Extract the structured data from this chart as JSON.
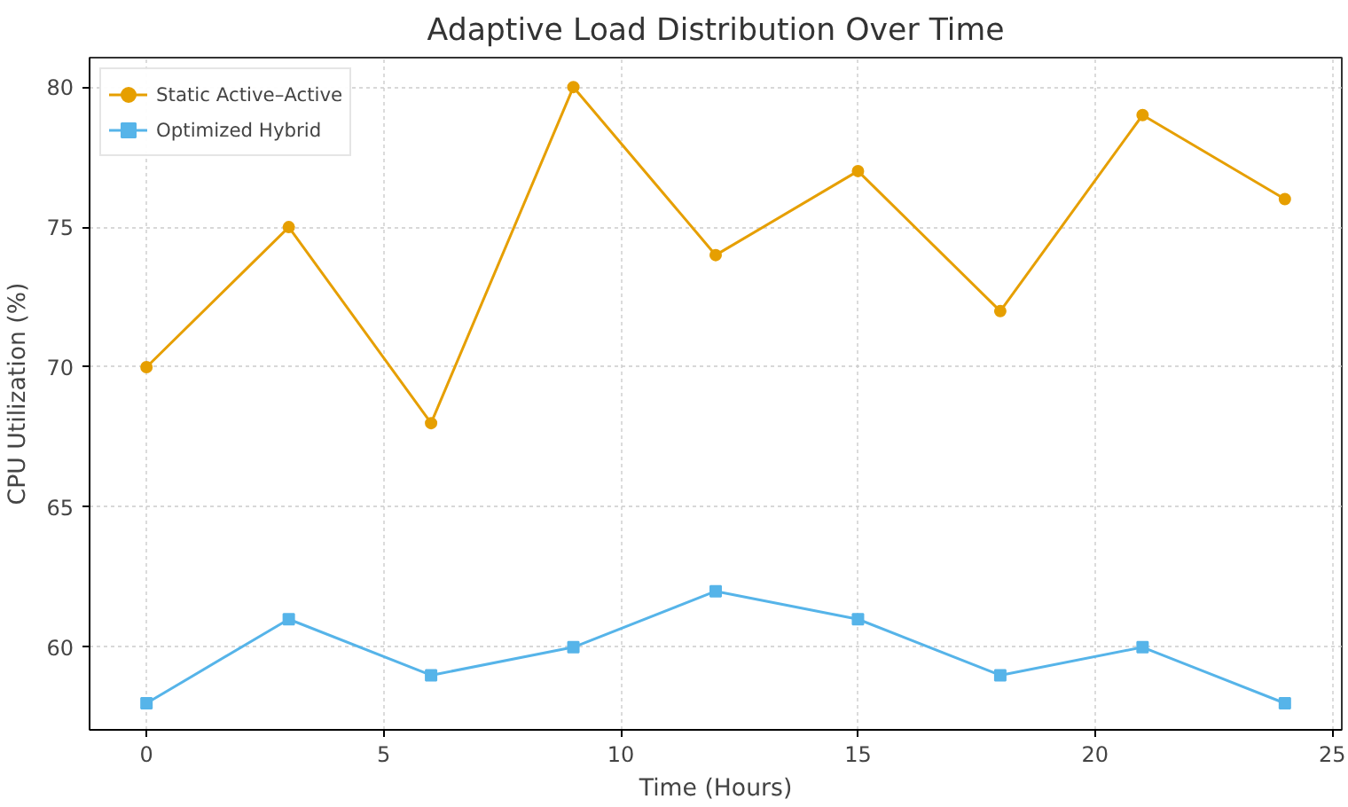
{
  "chart_data": {
    "type": "line",
    "title": "Adaptive Load Distribution Over Time",
    "xlabel": "Time (Hours)",
    "ylabel": "CPU Utilization (%)",
    "x": [
      0,
      3,
      6,
      9,
      12,
      15,
      18,
      21,
      24
    ],
    "series": [
      {
        "name": "Static Active–Active",
        "color": "#e69f00",
        "marker": "circle",
        "values": [
          70,
          75,
          68,
          80,
          74,
          77,
          72,
          79,
          76
        ]
      },
      {
        "name": "Optimized Hybrid",
        "color": "#56b4e9",
        "marker": "square",
        "values": [
          58,
          61,
          59,
          60,
          62,
          61,
          59,
          60,
          58
        ]
      }
    ],
    "xlim": [
      -1.2,
      25.2
    ],
    "ylim": [
      57.05,
      81.05
    ],
    "xticks": [
      0,
      5,
      10,
      15,
      20,
      25
    ],
    "yticks": [
      60,
      65,
      70,
      75,
      80
    ],
    "grid": true,
    "legend": "top left",
    "line_style": "solid"
  }
}
